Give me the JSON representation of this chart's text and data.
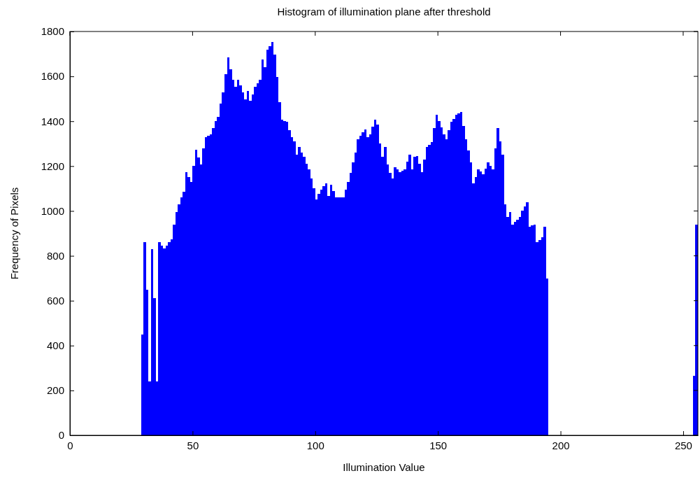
{
  "chart_data": {
    "type": "histogram",
    "title": "Histogram of illumination plane after threshold",
    "xlabel": "Illumination Value",
    "ylabel": "Frequency of Pixels",
    "bins": [
      0,
      1,
      2,
      3,
      4,
      5,
      6,
      7,
      8,
      9,
      10,
      11,
      12,
      13,
      14,
      15,
      16,
      17,
      18,
      19,
      20,
      21,
      22,
      23,
      24,
      25,
      26,
      27,
      28,
      29,
      30,
      31,
      32,
      33,
      34,
      35,
      36,
      37,
      38,
      39,
      40,
      41,
      42,
      43,
      44,
      45,
      46,
      47,
      48,
      49,
      50,
      51,
      52,
      53,
      54,
      55,
      56,
      57,
      58,
      59,
      60,
      61,
      62,
      63,
      64,
      65,
      66,
      67,
      68,
      69,
      70,
      71,
      72,
      73,
      74,
      75,
      76,
      77,
      78,
      79,
      80,
      81,
      82,
      83,
      84,
      85,
      86,
      87,
      88,
      89,
      90,
      91,
      92,
      93,
      94,
      95,
      96,
      97,
      98,
      99,
      100,
      101,
      102,
      103,
      104,
      105,
      106,
      107,
      108,
      109,
      110,
      111,
      112,
      113,
      114,
      115,
      116,
      117,
      118,
      119,
      120,
      121,
      122,
      123,
      124,
      125,
      126,
      127,
      128,
      129,
      130,
      131,
      132,
      133,
      134,
      135,
      136,
      137,
      138,
      139,
      140,
      141,
      142,
      143,
      144,
      145,
      146,
      147,
      148,
      149,
      150,
      151,
      152,
      153,
      154,
      155,
      156,
      157,
      158,
      159,
      160,
      161,
      162,
      163,
      164,
      165,
      166,
      167,
      168,
      169,
      170,
      171,
      172,
      173,
      174,
      175,
      176,
      177,
      178,
      179,
      180,
      181,
      182,
      183,
      184,
      185,
      186,
      187,
      188,
      189,
      190,
      191,
      192,
      193,
      194,
      195,
      196,
      197,
      198,
      199,
      200,
      201,
      202,
      203,
      204,
      205,
      206,
      207,
      208,
      209,
      210,
      211,
      212,
      213,
      214,
      215,
      216,
      217,
      218,
      219,
      220,
      221,
      222,
      223,
      224,
      225,
      226,
      227,
      228,
      229,
      230,
      231,
      232,
      233,
      234,
      235,
      236,
      237,
      238,
      239,
      240,
      241,
      242,
      243,
      244,
      245,
      246,
      247,
      248,
      249,
      250,
      251,
      252,
      253,
      254,
      255,
      256
    ],
    "values": [
      0,
      0,
      0,
      0,
      0,
      0,
      0,
      0,
      0,
      0,
      0,
      0,
      0,
      0,
      0,
      0,
      0,
      0,
      0,
      0,
      0,
      0,
      0,
      0,
      0,
      0,
      0,
      0,
      0,
      450,
      860,
      650,
      240,
      830,
      610,
      240,
      860,
      845,
      834,
      845,
      860,
      873,
      940,
      995,
      1030,
      1060,
      1085,
      1174,
      1150,
      1129,
      1200,
      1274,
      1240,
      1207,
      1280,
      1330,
      1336,
      1341,
      1370,
      1400,
      1419,
      1480,
      1530,
      1610,
      1686,
      1630,
      1586,
      1552,
      1586,
      1560,
      1530,
      1497,
      1536,
      1491,
      1520,
      1552,
      1570,
      1586,
      1675,
      1642,
      1720,
      1735,
      1753,
      1697,
      1597,
      1486,
      1408,
      1400,
      1397,
      1360,
      1330,
      1310,
      1252,
      1285,
      1260,
      1241,
      1210,
      1185,
      1146,
      1100,
      1051,
      1075,
      1096,
      1110,
      1124,
      1068,
      1118,
      1090,
      1062,
      1062,
      1062,
      1062,
      1095,
      1129,
      1170,
      1218,
      1260,
      1319,
      1335,
      1350,
      1363,
      1330,
      1341,
      1375,
      1408,
      1385,
      1300,
      1241,
      1285,
      1207,
      1170,
      1146,
      1196,
      1185,
      1174,
      1180,
      1185,
      1220,
      1252,
      1185,
      1241,
      1246,
      1210,
      1174,
      1230,
      1285,
      1295,
      1307,
      1370,
      1430,
      1400,
      1374,
      1340,
      1319,
      1360,
      1397,
      1410,
      1430,
      1435,
      1441,
      1380,
      1319,
      1270,
      1218,
      1124,
      1150,
      1185,
      1175,
      1163,
      1190,
      1218,
      1200,
      1185,
      1280,
      1369,
      1310,
      1252,
      1029,
      973,
      996,
      940,
      950,
      962,
      973,
      1000,
      1020,
      1040,
      929,
      935,
      940,
      862,
      870,
      884,
      929,
      700,
      0,
      0,
      0,
      0,
      0,
      0,
      0,
      0,
      0,
      0,
      0,
      0,
      0,
      0,
      0,
      0,
      0,
      0,
      0,
      0,
      0,
      0,
      0,
      0,
      0,
      0,
      0,
      0,
      0,
      0,
      0,
      0,
      0,
      0,
      0,
      0,
      0,
      0,
      0,
      0,
      0,
      0,
      0,
      0,
      0,
      0,
      0,
      0,
      0,
      0,
      0,
      0,
      0,
      0,
      0,
      0,
      0,
      0,
      0,
      265,
      940
    ],
    "color": "#0000ff",
    "xlim": [
      0,
      256
    ],
    "xticks": [
      0,
      50,
      100,
      150,
      200,
      250
    ],
    "ylim": [
      0,
      1800
    ],
    "yticks": [
      0,
      200,
      400,
      600,
      800,
      1000,
      1200,
      1400,
      1600,
      1800
    ]
  }
}
